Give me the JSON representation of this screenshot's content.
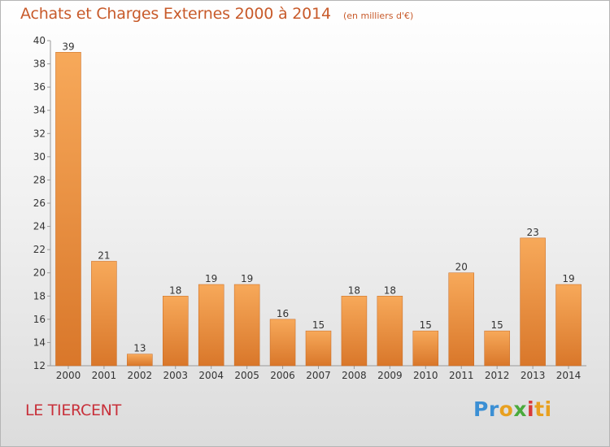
{
  "header": {
    "title": "Achats et Charges Externes 2000 à 2014",
    "subtitle": "(en milliers d'€)"
  },
  "footer": {
    "location": "LE TIERCENT",
    "logo_text": "Proxiti"
  },
  "colors": {
    "title": "#c85a2a",
    "location": "#c8303a",
    "bar_light": "#f7a95a",
    "bar_dark": "#d9772a"
  },
  "chart_data": {
    "type": "bar",
    "title": "Achats et Charges Externes 2000 à 2014",
    "subtitle": "(en milliers d'€)",
    "categories": [
      "2000",
      "2001",
      "2002",
      "2003",
      "2004",
      "2005",
      "2006",
      "2007",
      "2008",
      "2009",
      "2010",
      "2011",
      "2012",
      "2013",
      "2014"
    ],
    "values": [
      39,
      21,
      13,
      18,
      19,
      19,
      16,
      15,
      18,
      18,
      15,
      20,
      15,
      23,
      19
    ],
    "ylim": [
      12,
      40
    ],
    "yticks": [
      12,
      14,
      16,
      18,
      20,
      22,
      24,
      26,
      28,
      30,
      32,
      34,
      36,
      38,
      40
    ],
    "grid": false,
    "data_labels": true
  }
}
